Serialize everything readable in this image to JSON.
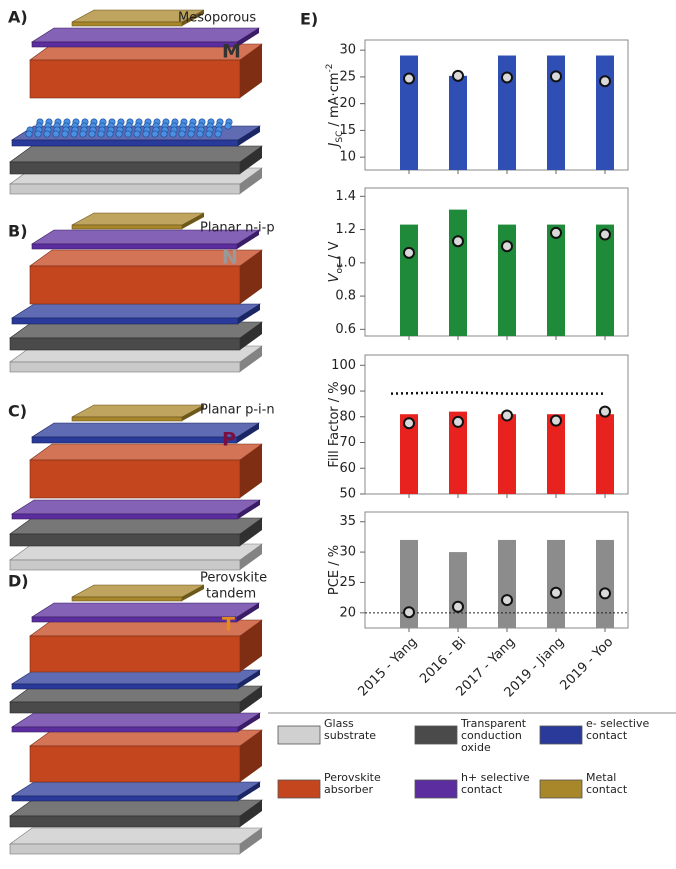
{
  "panels": [
    {
      "letter": "A)",
      "caption": [
        "Mesoporous"
      ],
      "code": "M",
      "code_color": "#333333"
    },
    {
      "letter": "B)",
      "caption": [
        "Planar n-i-p"
      ],
      "code": "N",
      "code_color": "#999999"
    },
    {
      "letter": "C)",
      "caption": [
        "Planar p-i-n"
      ],
      "code": "P",
      "code_color": "#7a1042"
    },
    {
      "letter": "D)",
      "caption": [
        "Perovskite",
        "tandem"
      ],
      "code": "T",
      "code_color": "#e58a1f"
    }
  ],
  "chart_panel_label": "E)",
  "chart_data": [
    {
      "type": "bar",
      "ylabel": [
        {
          "text": "J",
          "style": "italic"
        },
        {
          "text": "SC",
          "shift": "sub"
        },
        {
          "text": " / mA·cm"
        },
        {
          "text": "-2",
          "shift": "super"
        }
      ],
      "ylim": [
        7.6,
        31.9
      ],
      "yticks": [
        10,
        15,
        20,
        25,
        30
      ],
      "series": [
        {
          "type": "bar",
          "color": "#2f4fb5",
          "values": [
            29,
            25.2,
            29,
            29,
            29
          ]
        },
        {
          "type": "scatter",
          "color": "#d9d9d9",
          "values": [
            24.7,
            25.2,
            24.9,
            25.1,
            24.2
          ]
        }
      ]
    },
    {
      "type": "bar",
      "ylabel": [
        {
          "text": "V",
          "style": "italic"
        },
        {
          "text": "oc",
          "shift": "sub"
        },
        {
          "text": " / V"
        }
      ],
      "ylim": [
        0.56,
        1.45
      ],
      "yticks": [
        0.6,
        0.8,
        {
          "value": 1,
          "label": "1.0"
        },
        1.2,
        1.4
      ],
      "series": [
        {
          "type": "bar",
          "color": "#1f8a3a",
          "values": [
            1.23,
            1.32,
            1.23,
            1.23,
            1.23
          ]
        },
        {
          "type": "scatter",
          "color": "#d9d9d9",
          "values": [
            1.06,
            1.13,
            1.1,
            1.18,
            1.17
          ]
        }
      ]
    },
    {
      "type": "bar",
      "ylabel": [
        {
          "text": "Fill Factor / %"
        }
      ],
      "ylim": [
        50,
        104
      ],
      "yticks": [
        50,
        60,
        70,
        80,
        90,
        100
      ],
      "series": [
        {
          "type": "bar",
          "color": "#e8231f",
          "values": [
            81,
            82,
            81,
            81,
            81
          ]
        },
        {
          "type": "scatter",
          "color": "#d9d9d9",
          "values": [
            77.5,
            78,
            80.5,
            78.5,
            82
          ]
        },
        {
          "type": "line",
          "style": "dotted",
          "color": "#111111",
          "values": [
            89,
            89.5,
            89,
            89,
            89
          ]
        }
      ]
    },
    {
      "type": "bar",
      "ylabel": [
        {
          "text": "PCE / %"
        }
      ],
      "ylim": [
        17.5,
        36.6
      ],
      "yticks": [
        20,
        25,
        30,
        35
      ],
      "reference_line": 20,
      "categories": [
        "2015 - Yang",
        "2016 - Bi",
        "2017 - Yang",
        "2019 - Jiang",
        "2019 - Yoo"
      ],
      "series": [
        {
          "type": "bar",
          "color": "#8c8c8c",
          "values": [
            32,
            30,
            32,
            32,
            32
          ]
        },
        {
          "type": "scatter",
          "color": "#d9d9d9",
          "values": [
            20.1,
            21,
            22.1,
            23.3,
            23.2
          ]
        }
      ]
    }
  ],
  "legend": {
    "items": [
      {
        "label": [
          "Glass",
          "substrate"
        ],
        "color": "#d0d0d0"
      },
      {
        "label": [
          "Transparent",
          "conduction",
          "oxide"
        ],
        "color": "#4a4a4a"
      },
      {
        "label": [
          "e- selective",
          "contact"
        ],
        "color": "#2a3a9a"
      },
      {
        "label": [
          "Perovskite",
          "absorber"
        ],
        "color": "#c4461f"
      },
      {
        "label": [
          "h+ selective",
          "contact"
        ],
        "color": "#5b2d9e"
      },
      {
        "label": [
          "Metal",
          "contact"
        ],
        "color": "#a8862a"
      }
    ]
  }
}
